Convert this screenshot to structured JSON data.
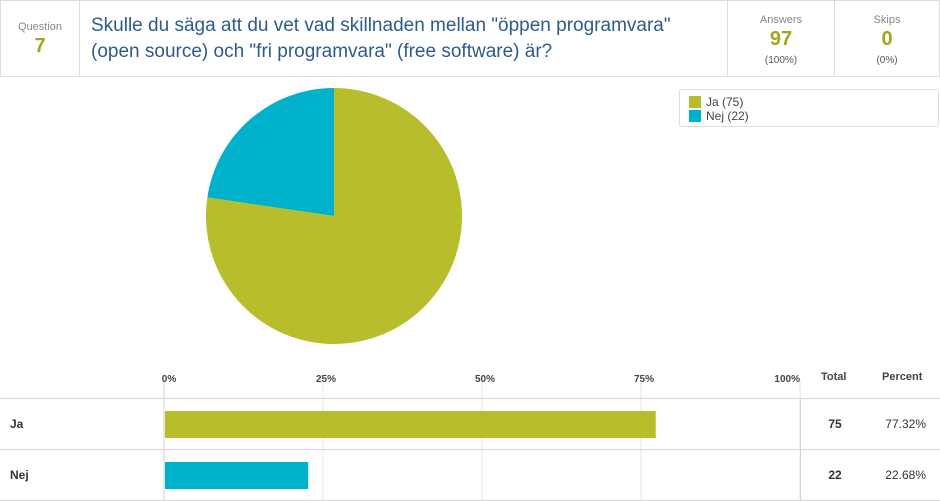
{
  "header": {
    "question_label": "Question",
    "question_number": "7",
    "title": "Skulle du säga att du vet vad skillnaden mellan \"öppen programvara\" (open source) och \"fri programvara\" (free software) är?",
    "answers_label": "Answers",
    "answers_value": "97",
    "answers_pct": "(100%)",
    "skips_label": "Skips",
    "skips_value": "0",
    "skips_pct": "(0%)"
  },
  "legend": [
    {
      "label": "Ja (75)",
      "color": "#b8bd2b"
    },
    {
      "label": "Nej (22)",
      "color": "#00b1cb"
    }
  ],
  "table": {
    "total_header": "Total",
    "percent_header": "Percent",
    "rows": [
      {
        "label": "Ja",
        "total": "75",
        "percent": "77.32%"
      },
      {
        "label": "Nej",
        "total": "22",
        "percent": "22.68%"
      }
    ]
  },
  "chart_data": [
    {
      "type": "pie",
      "title": "",
      "legend_position": "top-right",
      "slices": [
        {
          "label": "Ja",
          "value": 75,
          "color": "#b8bd2b"
        },
        {
          "label": "Nej",
          "value": 22,
          "color": "#00b1cb"
        }
      ]
    },
    {
      "type": "bar",
      "orientation": "horizontal",
      "categories": [
        "Ja",
        "Nej"
      ],
      "values": [
        77.32,
        22.68
      ],
      "colors": [
        "#b8bd2b",
        "#00b1cb"
      ],
      "xlim": [
        0,
        100
      ],
      "tick_labels": [
        "0%",
        "25%",
        "50%",
        "75%",
        "100%"
      ],
      "grid": true
    }
  ]
}
